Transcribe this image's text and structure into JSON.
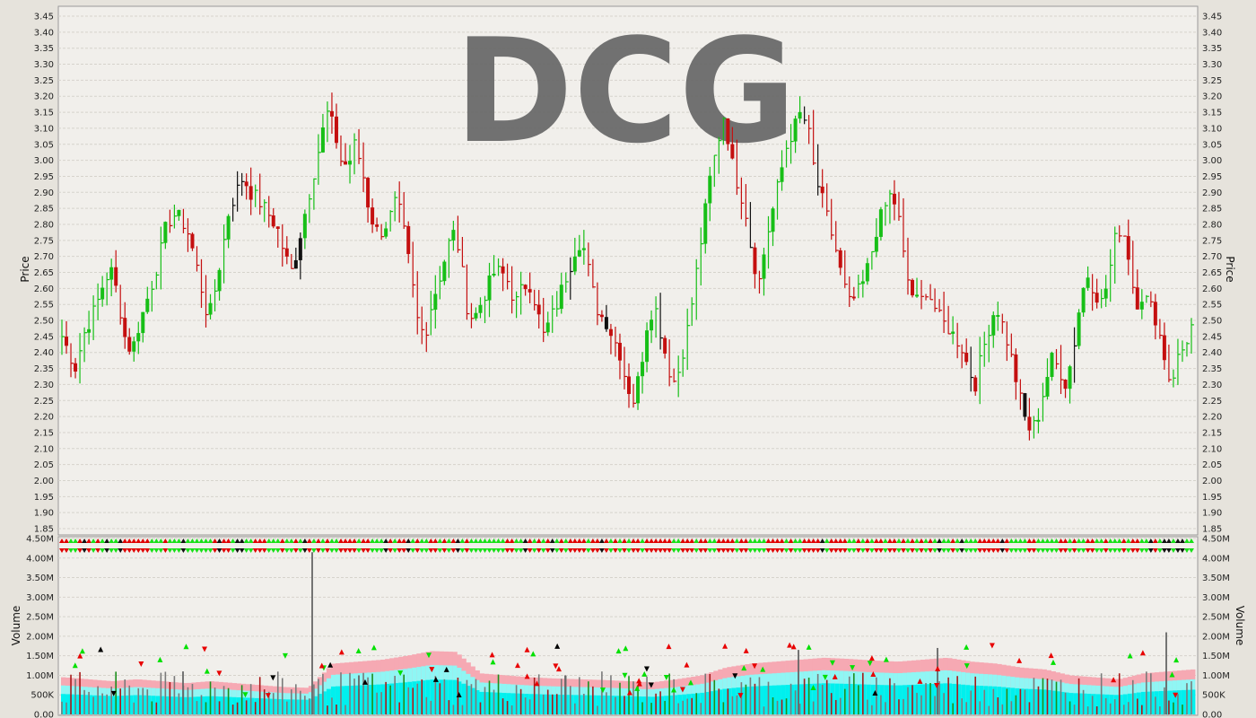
{
  "chart_data": [
    {
      "type": "ohlc",
      "title": "DCG",
      "ylabel": "Price",
      "ylim": [
        1.85,
        3.45
      ],
      "yticks": [
        "1.85",
        "1.90",
        "1.95",
        "2.00",
        "2.05",
        "2.10",
        "2.15",
        "2.20",
        "2.25",
        "2.30",
        "2.35",
        "2.40",
        "2.45",
        "2.50",
        "2.55",
        "2.60",
        "2.65",
        "2.70",
        "2.75",
        "2.80",
        "2.85",
        "2.90",
        "2.95",
        "3.00",
        "3.05",
        "3.10",
        "3.15",
        "3.20",
        "3.25",
        "3.30",
        "3.35",
        "3.40",
        "3.45"
      ],
      "grid": true,
      "series": [
        {
          "id": "price",
          "close_path": [
            2.45,
            2.4,
            2.35,
            2.45,
            2.5,
            2.55,
            2.62,
            2.66,
            2.58,
            2.45,
            2.4,
            2.48,
            2.55,
            2.62,
            2.7,
            2.8,
            2.83,
            2.82,
            2.78,
            2.7,
            2.6,
            2.5,
            2.6,
            2.72,
            2.85,
            2.9,
            2.95,
            2.9,
            2.88,
            2.85,
            2.82,
            2.78,
            2.7,
            2.65,
            2.75,
            2.85,
            2.95,
            3.05,
            3.15,
            3.1,
            3.0,
            2.98,
            3.05,
            2.98,
            2.85,
            2.78,
            2.78,
            2.82,
            2.88,
            2.78,
            2.65,
            2.5,
            2.45,
            2.55,
            2.62,
            2.7,
            2.78,
            2.72,
            2.55,
            2.5,
            2.55,
            2.6,
            2.65,
            2.65,
            2.62,
            2.55,
            2.6,
            2.62,
            2.55,
            2.45,
            2.5,
            2.55,
            2.62,
            2.68,
            2.75,
            2.72,
            2.6,
            2.52,
            2.5,
            2.45,
            2.4,
            2.3,
            2.25,
            2.35,
            2.5,
            2.55,
            2.45,
            2.35,
            2.3,
            2.4,
            2.5,
            2.65,
            2.8,
            2.95,
            3.05,
            3.15,
            3.0,
            2.92,
            2.85,
            2.7,
            2.62,
            2.75,
            2.85,
            2.95,
            3.05,
            3.1,
            3.15,
            3.1,
            2.95,
            2.88,
            2.8,
            2.72,
            2.62,
            2.55,
            2.58,
            2.62,
            2.7,
            2.8,
            2.85,
            2.9,
            2.82,
            2.65,
            2.58,
            2.55,
            2.6,
            2.55,
            2.5,
            2.48,
            2.45,
            2.42,
            2.35,
            2.3,
            2.4,
            2.48,
            2.55,
            2.48,
            2.4,
            2.3,
            2.2,
            2.15,
            2.2,
            2.3,
            2.38,
            2.35,
            2.3,
            2.4,
            2.55,
            2.65,
            2.6,
            2.55,
            2.62,
            2.75,
            2.8,
            2.7,
            2.55,
            2.58,
            2.55,
            2.5,
            2.4,
            2.3,
            2.38,
            2.42,
            2.48
          ]
        }
      ]
    },
    {
      "type": "bar",
      "ylabel": "Volume",
      "ylim": [
        0,
        4500000
      ],
      "yticks": [
        "0.00",
        "500K",
        "1.00M",
        "1.50M",
        "2.00M",
        "2.50M",
        "3.00M",
        "3.50M",
        "4.00M",
        "4.50M"
      ],
      "grid": true,
      "series": [
        {
          "id": "volume",
          "average_level_path": [
            0.95,
            0.9,
            0.85,
            0.9,
            0.85,
            0.8,
            0.85,
            0.8,
            0.75,
            0.7,
            0.68,
            1.3,
            1.35,
            1.4,
            1.5,
            1.62,
            1.6,
            1.05,
            1.0,
            0.95,
            0.92,
            0.9,
            0.88,
            0.85,
            0.82,
            0.9,
            1.0,
            1.2,
            1.3,
            1.35,
            1.4,
            1.45,
            1.42,
            1.38,
            1.35,
            1.4,
            1.45,
            1.35,
            1.3,
            1.2,
            1.15,
            1.0,
            0.95,
            0.9,
            1.05,
            1.1,
            1.15
          ]
        },
        {
          "id": "volume-spikes",
          "values": [
            [
              4.15,
              300000,
              "black"
            ],
            [
              2.05,
              710000,
              "black"
            ],
            [
              1.65,
              1395000,
              "black"
            ],
            [
              1.7,
              1885000,
              "black"
            ],
            [
              2.05,
              2125000,
              "black"
            ],
            [
              1.5,
              1310000,
              "black"
            ],
            [
              1.1,
              975000,
              "black"
            ]
          ]
        }
      ]
    }
  ],
  "watermark": "DCG"
}
